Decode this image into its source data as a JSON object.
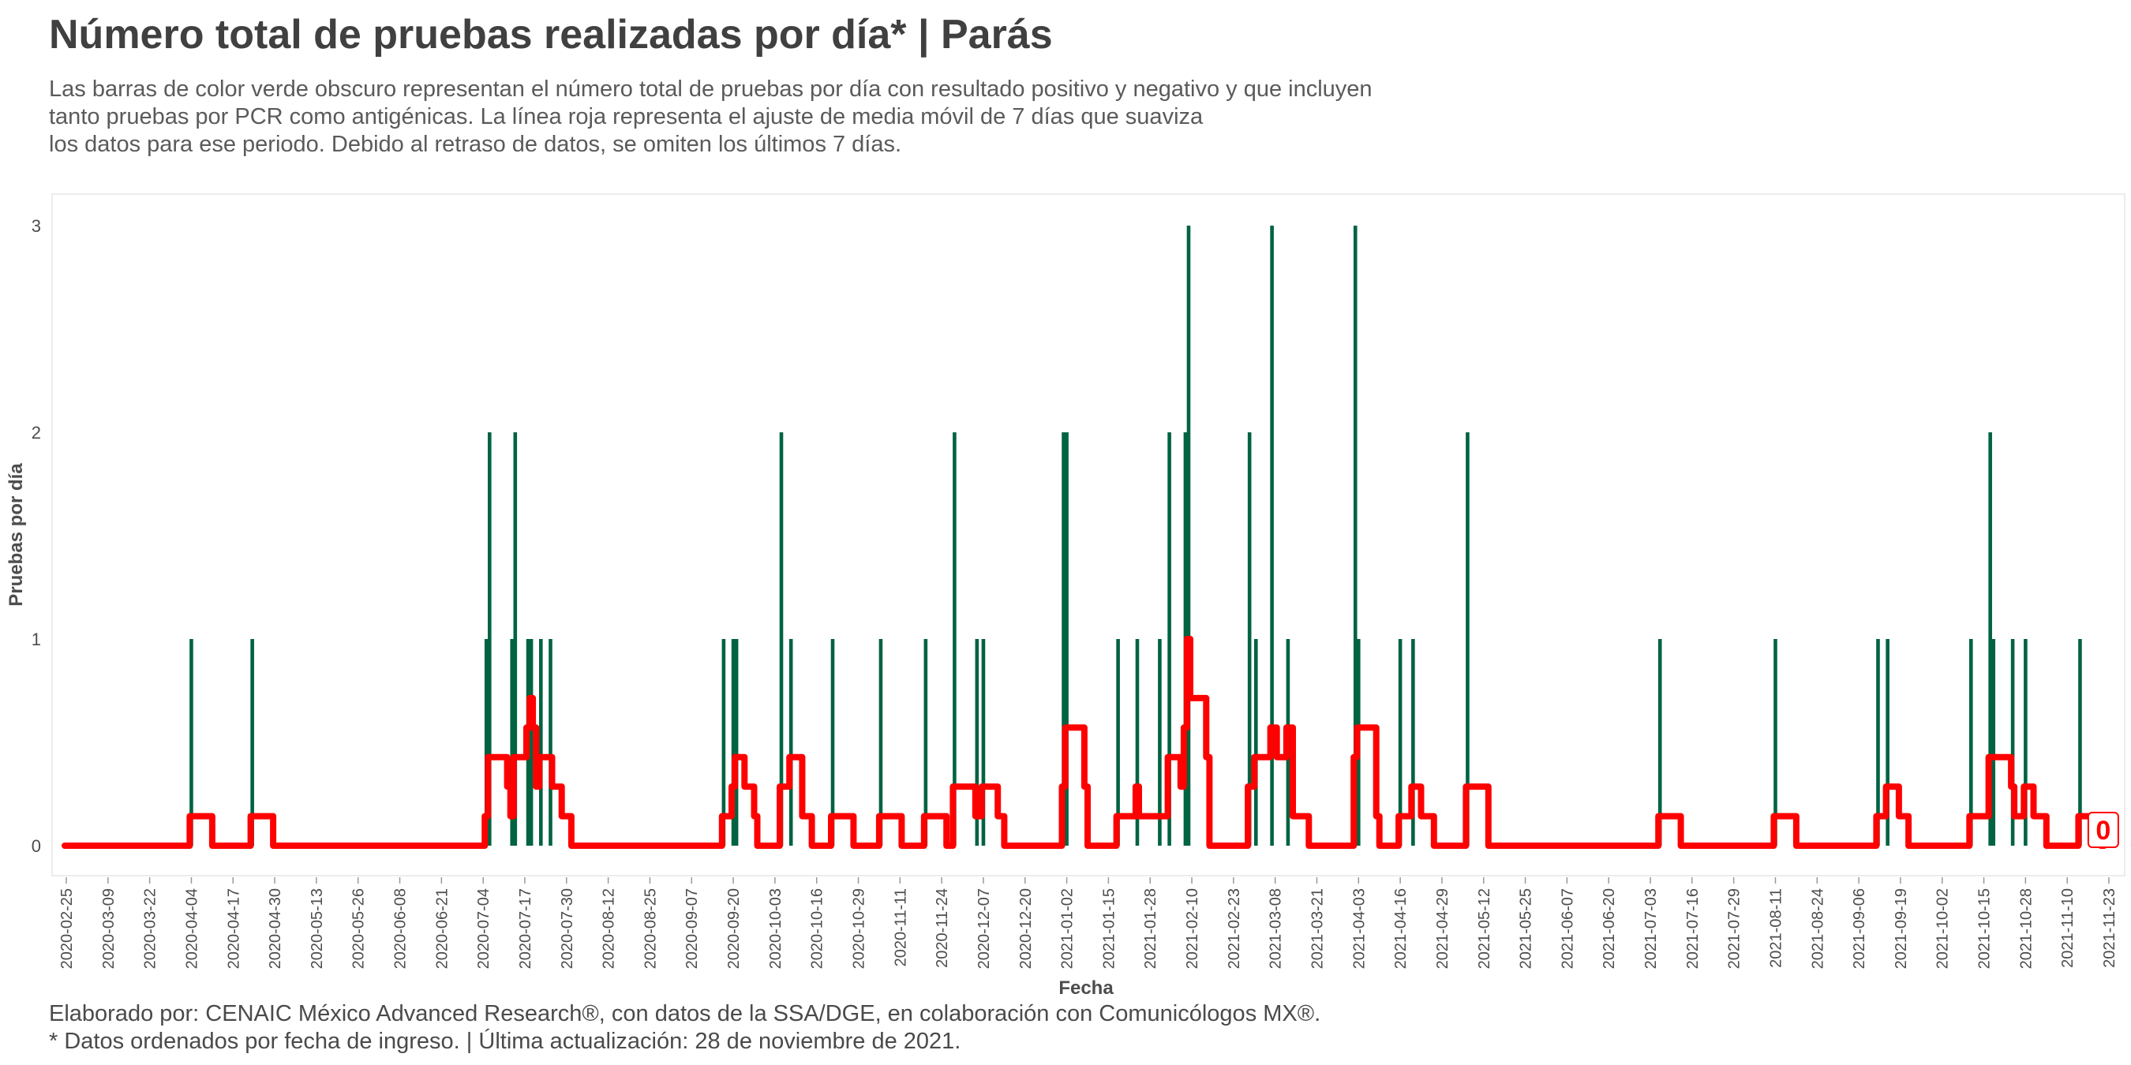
{
  "header": {
    "title": "Número total de pruebas realizadas por día* | Parás",
    "subtitle_lines": [
      "Las barras de color verde obscuro representan el número total de pruebas por día con resultado positivo y negativo y que incluyen",
      "tanto pruebas por PCR como antigénicas. La línea roja representa el ajuste de media móvil de 7 días que suaviza",
      "los datos para ese periodo. Debido al retraso de datos, se omiten los últimos 7 días."
    ]
  },
  "footer": {
    "lines": [
      "Elaborado por: CENAIC México Advanced Research®, con datos de la SSA/DGE, en colaboración con Comunicólogos MX®.",
      "* Datos ordenados por fecha de ingreso. | Última actualización: 28 de noviembre de 2021."
    ]
  },
  "colors": {
    "bar": "#006341",
    "line": "#ff0000",
    "panel_border": "#e6e6e6",
    "text": "#404040"
  },
  "chart_data": {
    "type": "bar",
    "xlabel": "Fecha",
    "ylabel": "Pruebas por día",
    "x_range": [
      "2020-02-25",
      "2021-11-21"
    ],
    "ylim": [
      0,
      3
    ],
    "y_ticks": [
      0,
      1,
      2,
      3
    ],
    "x_ticks": [
      "2020-02-25",
      "2020-03-09",
      "2020-03-22",
      "2020-04-04",
      "2020-04-17",
      "2020-04-30",
      "2020-05-13",
      "2020-05-26",
      "2020-06-08",
      "2020-06-21",
      "2020-07-04",
      "2020-07-17",
      "2020-07-30",
      "2020-08-12",
      "2020-08-25",
      "2020-09-07",
      "2020-09-20",
      "2020-10-03",
      "2020-10-16",
      "2020-10-29",
      "2020-11-11",
      "2020-11-24",
      "2020-12-07",
      "2020-12-20",
      "2021-01-02",
      "2021-01-15",
      "2021-01-28",
      "2021-02-10",
      "2021-02-23",
      "2021-03-08",
      "2021-03-21",
      "2021-04-03",
      "2021-04-16",
      "2021-04-29",
      "2021-05-12",
      "2021-05-25",
      "2021-06-07",
      "2021-06-20",
      "2021-07-03",
      "2021-07-16",
      "2021-07-29",
      "2021-08-11",
      "2021-08-24",
      "2021-09-06",
      "2021-09-19",
      "2021-10-02",
      "2021-10-15",
      "2021-10-28",
      "2021-11-10",
      "2021-11-23"
    ],
    "grid": false,
    "series": [
      {
        "kind": "bar",
        "points": [
          [
            "2020-04-04",
            1
          ],
          [
            "2020-04-23",
            1
          ],
          [
            "2020-07-05",
            1
          ],
          [
            "2020-07-06",
            2
          ],
          [
            "2020-07-13",
            1
          ],
          [
            "2020-07-14",
            2
          ],
          [
            "2020-07-18",
            1
          ],
          [
            "2020-07-19",
            1
          ],
          [
            "2020-07-22",
            1
          ],
          [
            "2020-07-25",
            1
          ],
          [
            "2020-09-17",
            1
          ],
          [
            "2020-09-20",
            1
          ],
          [
            "2020-09-21",
            1
          ],
          [
            "2020-10-05",
            2
          ],
          [
            "2020-10-08",
            1
          ],
          [
            "2020-10-21",
            1
          ],
          [
            "2020-11-05",
            1
          ],
          [
            "2020-11-19",
            1
          ],
          [
            "2020-11-28",
            2
          ],
          [
            "2020-12-05",
            1
          ],
          [
            "2020-12-07",
            1
          ],
          [
            "2021-01-01",
            2
          ],
          [
            "2021-01-02",
            2
          ],
          [
            "2021-01-18",
            1
          ],
          [
            "2021-01-24",
            1
          ],
          [
            "2021-01-31",
            1
          ],
          [
            "2021-02-03",
            2
          ],
          [
            "2021-02-08",
            2
          ],
          [
            "2021-02-09",
            3
          ],
          [
            "2021-02-28",
            2
          ],
          [
            "2021-03-02",
            1
          ],
          [
            "2021-03-07",
            3
          ],
          [
            "2021-03-12",
            1
          ],
          [
            "2021-04-02",
            3
          ],
          [
            "2021-04-03",
            1
          ],
          [
            "2021-04-16",
            1
          ],
          [
            "2021-04-20",
            1
          ],
          [
            "2021-05-07",
            2
          ],
          [
            "2021-07-06",
            1
          ],
          [
            "2021-08-11",
            1
          ],
          [
            "2021-09-12",
            1
          ],
          [
            "2021-09-15",
            1
          ],
          [
            "2021-10-11",
            1
          ],
          [
            "2021-10-17",
            2
          ],
          [
            "2021-10-18",
            1
          ],
          [
            "2021-10-24",
            1
          ],
          [
            "2021-10-28",
            1
          ],
          [
            "2021-11-14",
            1
          ]
        ]
      },
      {
        "kind": "line",
        "description_value": "media móvil 7 días",
        "last_value_label": "0"
      }
    ]
  }
}
